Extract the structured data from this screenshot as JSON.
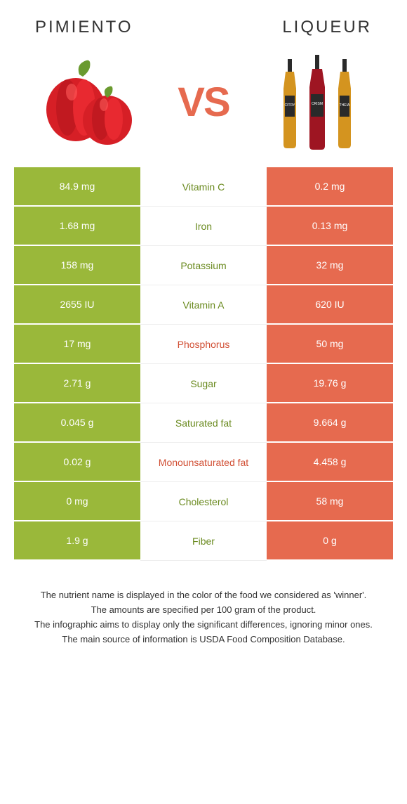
{
  "header": {
    "left_title": "Pimiento",
    "right_title": "Liqueur",
    "vs_label": "VS"
  },
  "colors": {
    "left_bg": "#9ab83a",
    "right_bg": "#e66a4f",
    "left_winner_text": "#6a8a1f",
    "right_winner_text": "#d14f34",
    "vs_color": "#e66a4f"
  },
  "nutrients": [
    {
      "name": "Vitamin C",
      "left": "84.9 mg",
      "right": "0.2 mg",
      "winner": "left"
    },
    {
      "name": "Iron",
      "left": "1.68 mg",
      "right": "0.13 mg",
      "winner": "left"
    },
    {
      "name": "Potassium",
      "left": "158 mg",
      "right": "32 mg",
      "winner": "left"
    },
    {
      "name": "Vitamin A",
      "left": "2655 IU",
      "right": "620 IU",
      "winner": "left"
    },
    {
      "name": "Phosphorus",
      "left": "17 mg",
      "right": "50 mg",
      "winner": "right"
    },
    {
      "name": "Sugar",
      "left": "2.71 g",
      "right": "19.76 g",
      "winner": "left"
    },
    {
      "name": "Saturated fat",
      "left": "0.045 g",
      "right": "9.664 g",
      "winner": "left"
    },
    {
      "name": "Monounsaturated fat",
      "left": "0.02 g",
      "right": "4.458 g",
      "winner": "right"
    },
    {
      "name": "Cholesterol",
      "left": "0 mg",
      "right": "58 mg",
      "winner": "left"
    },
    {
      "name": "Fiber",
      "left": "1.9 g",
      "right": "0 g",
      "winner": "left"
    }
  ],
  "footnotes": [
    "The nutrient name is displayed in the color of the food we considered as 'winner'.",
    "The amounts are specified per 100 gram of the product.",
    "The infographic aims to display only the significant differences, ignoring minor ones.",
    "The main source of information is USDA Food Composition Database."
  ]
}
